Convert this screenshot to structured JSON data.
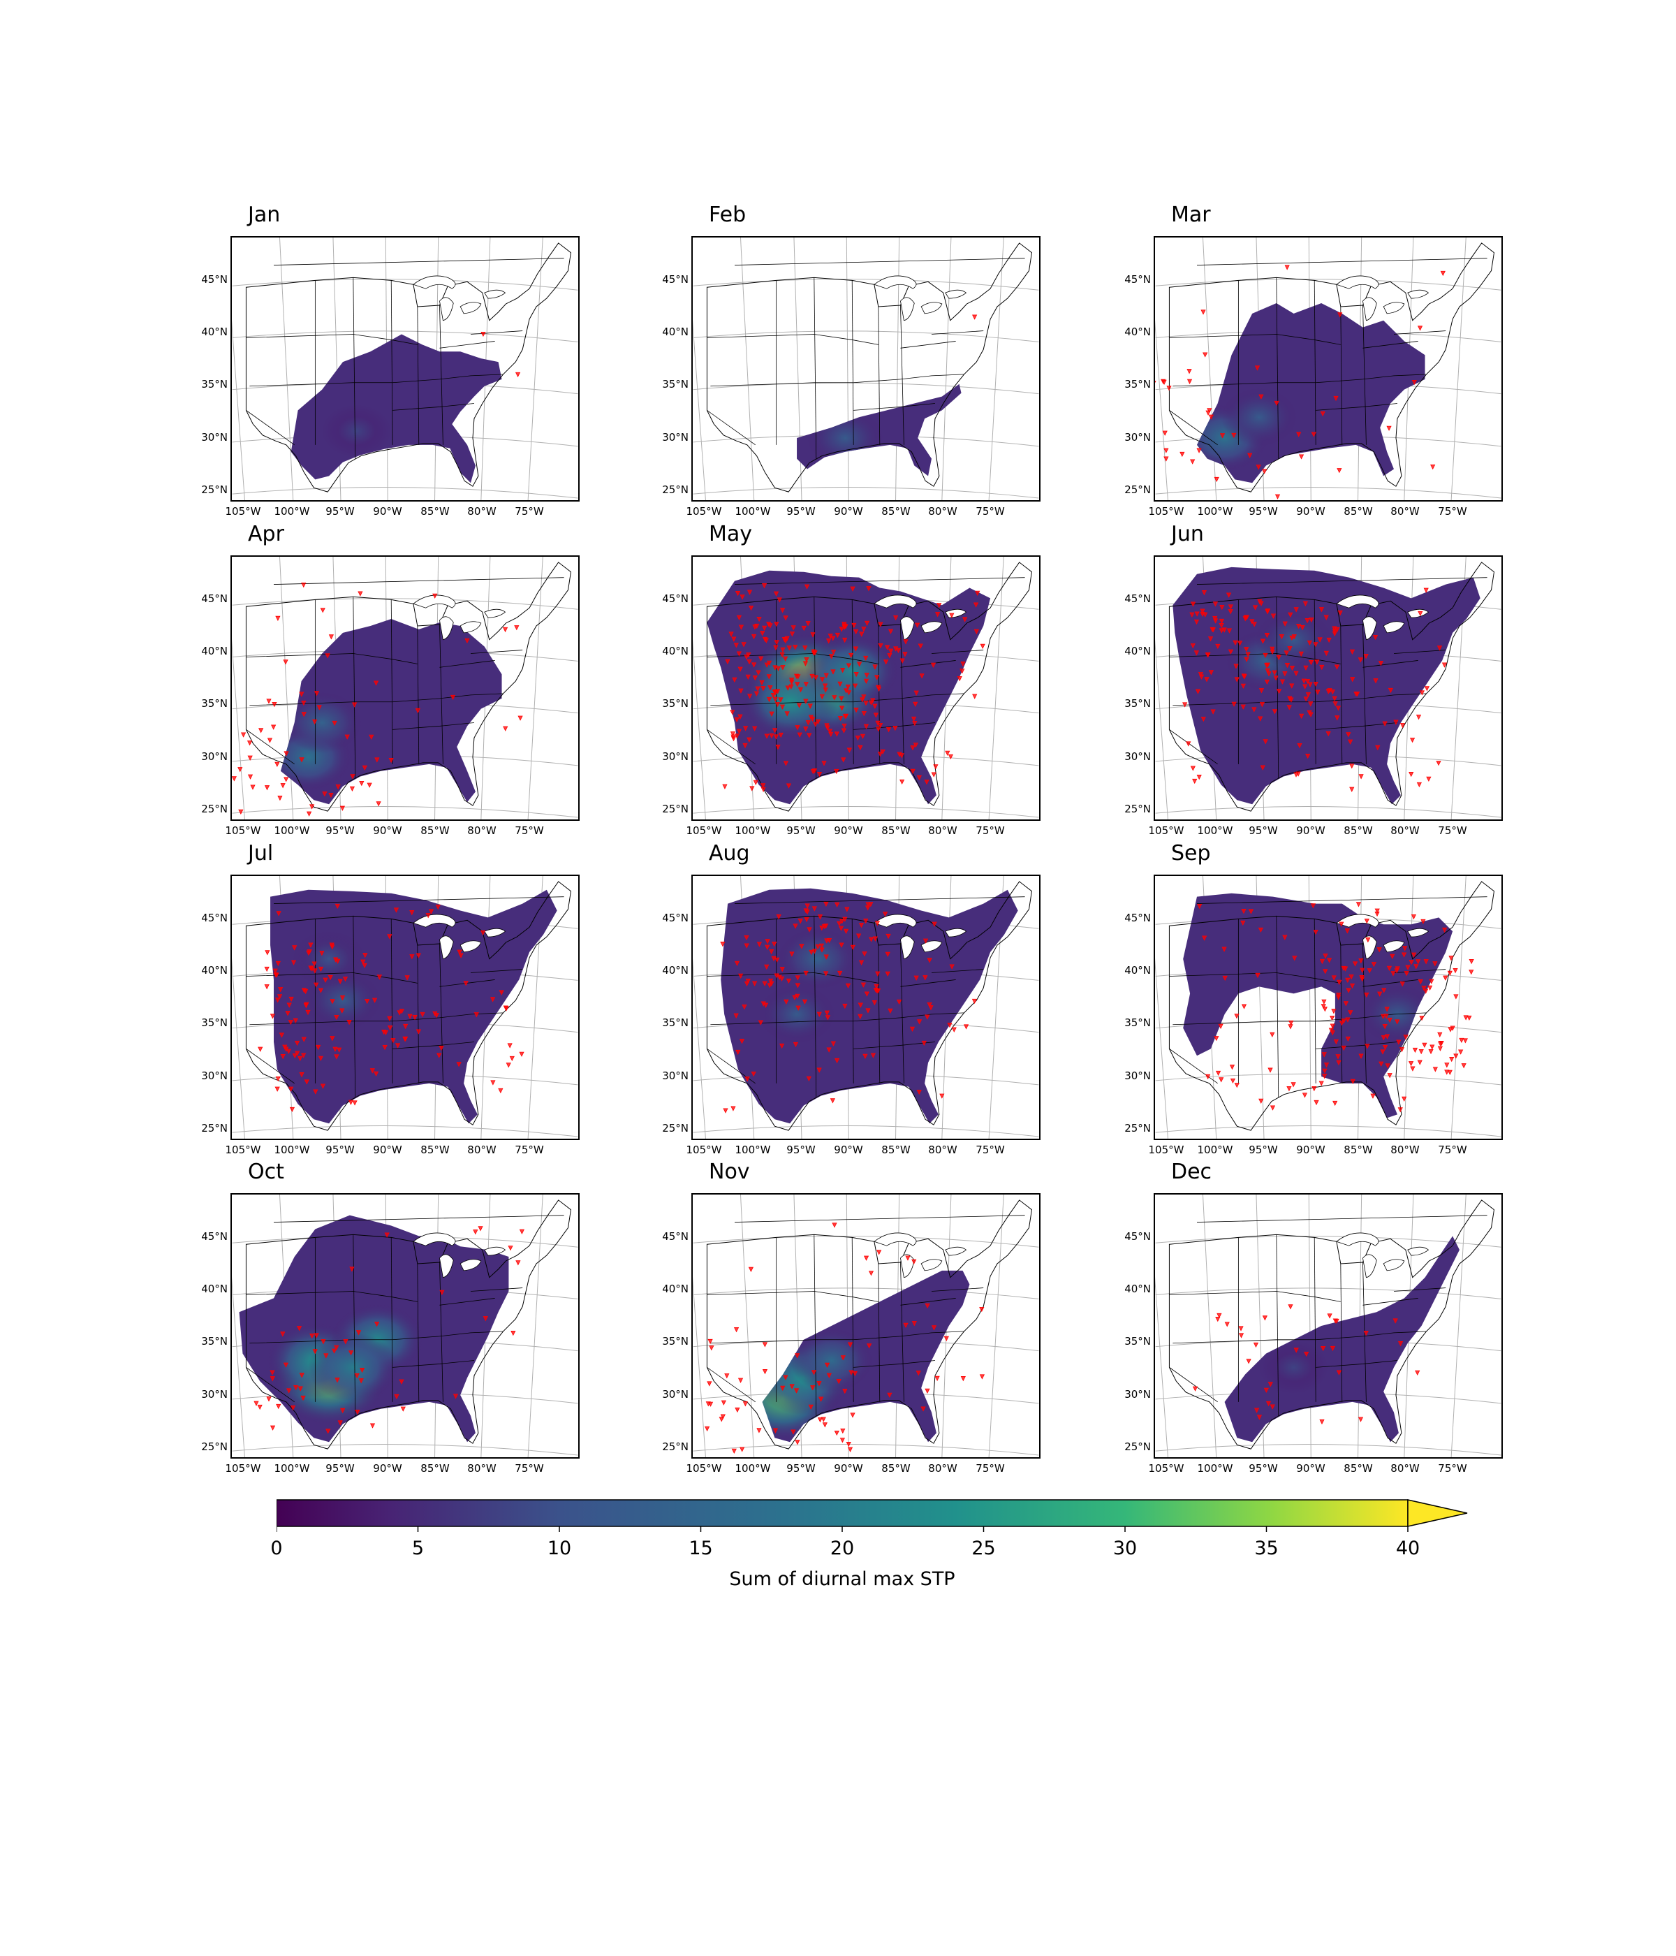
{
  "figure": {
    "colorbar": {
      "label": "Sum of diurnal max STP",
      "ticks": [
        "0",
        "5",
        "10",
        "15",
        "20",
        "25",
        "30",
        "35",
        "40"
      ],
      "range": [
        0,
        40
      ],
      "extend": "max",
      "colormap": "viridis"
    },
    "lat_labels": [
      "45°N",
      "40°N",
      "35°N",
      "30°N",
      "25°N"
    ],
    "lon_labels": [
      "105°W",
      "100°W",
      "95°W",
      "90°W",
      "85°W",
      "80°W",
      "75°W"
    ],
    "panels": [
      {
        "title": "Jan"
      },
      {
        "title": "Feb"
      },
      {
        "title": "Mar"
      },
      {
        "title": "Apr"
      },
      {
        "title": "May"
      },
      {
        "title": "Jun"
      },
      {
        "title": "Jul"
      },
      {
        "title": "Aug"
      },
      {
        "title": "Sep"
      },
      {
        "title": "Oct"
      },
      {
        "title": "Nov"
      },
      {
        "title": "Dec"
      }
    ]
  },
  "colors": {
    "viridis_low": "#440154",
    "viridis_mid": "#21918c",
    "viridis_high": "#fde725",
    "fill_base": "#472d7b",
    "tornado_markers": "#ff0000",
    "state_borders": "#000000",
    "gridlines": "#b0b0b0"
  }
}
